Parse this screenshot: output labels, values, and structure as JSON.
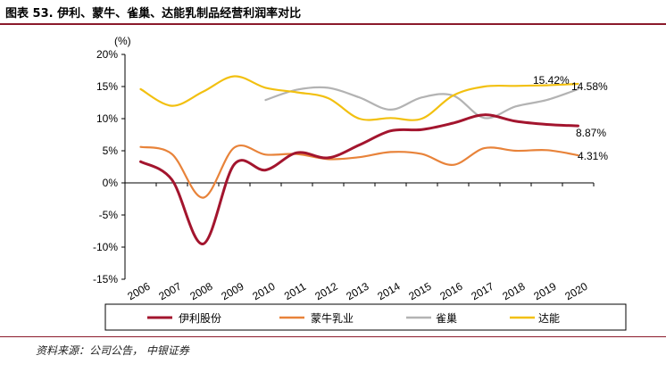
{
  "figure": {
    "title": "图表 53. 伊利、蒙牛、雀巢、达能乳制品经营利润率对比",
    "source": "资料来源：公司公告， 中银证券"
  },
  "chart_data": {
    "type": "line",
    "title": "",
    "xlabel": "",
    "ylabel": "(%)",
    "ylim": [
      -15,
      20
    ],
    "yticks": [
      -15,
      -10,
      -5,
      0,
      5,
      10,
      15,
      20
    ],
    "ytick_labels": [
      "-15%",
      "-10%",
      "-5%",
      "0%",
      "5%",
      "10%",
      "15%",
      "20%"
    ],
    "x": [
      "2006",
      "2007",
      "2008",
      "2009",
      "2010",
      "2011",
      "2012",
      "2013",
      "2014",
      "2015",
      "2016",
      "2017",
      "2018",
      "2019",
      "2020"
    ],
    "legend_position": "bottom",
    "grid": false,
    "series": [
      {
        "name": "伊利股份",
        "color": "#a3152e",
        "values": [
          3.3,
          0.5,
          -9.5,
          2.9,
          2.0,
          4.7,
          3.9,
          5.9,
          8.1,
          8.3,
          9.3,
          10.6,
          9.6,
          9.1,
          8.87
        ]
      },
      {
        "name": "蒙牛乳业",
        "color": "#e8833a",
        "values": [
          5.6,
          4.5,
          -2.3,
          5.5,
          4.4,
          4.5,
          3.7,
          4.0,
          4.8,
          4.5,
          2.8,
          5.4,
          5.0,
          5.1,
          4.31
        ]
      },
      {
        "name": "雀巢",
        "color": "#b3b3b3",
        "values": [
          null,
          null,
          null,
          null,
          12.9,
          14.5,
          14.8,
          13.3,
          11.4,
          13.3,
          13.6,
          10.1,
          11.9,
          12.9,
          14.58
        ]
      },
      {
        "name": "达能",
        "color": "#f2c010",
        "values": [
          14.6,
          12.0,
          14.2,
          16.6,
          14.8,
          14.1,
          13.2,
          10.0,
          10.1,
          10.0,
          13.6,
          15.0,
          15.1,
          15.2,
          15.42
        ]
      }
    ],
    "end_labels": [
      {
        "series": "达能",
        "text": "15.42%"
      },
      {
        "series": "雀巢",
        "text": "14.58%"
      },
      {
        "series": "伊利股份",
        "text": "8.87%"
      },
      {
        "series": "蒙牛乳业",
        "text": "4.31%"
      }
    ]
  }
}
